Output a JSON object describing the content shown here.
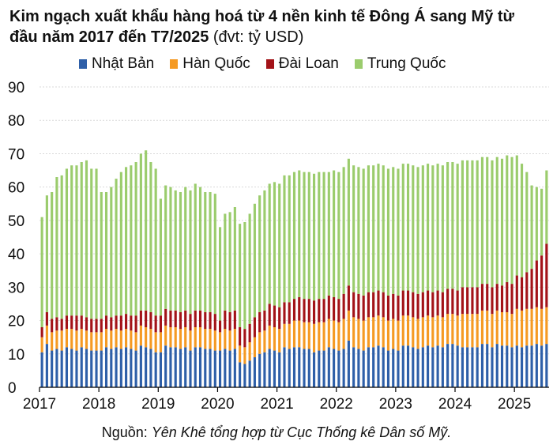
{
  "title": {
    "bold": "Kim ngạch xuất khẩu hàng hoá từ 4 nền kinh tế Đông Á sang Mỹ từ đầu năm 2017 đến T7/2025",
    "unit": " (đvt: tỷ USD)"
  },
  "source": {
    "prefix": "Nguồn: ",
    "text": "Yên Khê tổng hợp từ Cục Thống kê Dân số Mỹ."
  },
  "colors": {
    "japan": "#2e5fa8",
    "korea": "#f59a23",
    "taiwan": "#a31318",
    "china": "#9bcc6d",
    "grid": "#d9d9d9",
    "axis": "#000000"
  },
  "chart_data": {
    "type": "bar",
    "stacked": true,
    "ylim": [
      0,
      90
    ],
    "yticks": [
      0,
      10,
      20,
      30,
      40,
      50,
      60,
      70,
      80,
      90
    ],
    "xtick_labels": [
      "2017",
      "2018",
      "2019",
      "2020",
      "2021",
      "2022",
      "2023",
      "2024",
      "2025"
    ],
    "grid": true,
    "legend_position": "top",
    "period": "monthly, 2017-01 to 2025-07",
    "series": [
      {
        "name": "Nhật Bản",
        "color_key": "japan",
        "values": [
          10.5,
          13,
          11,
          11.5,
          11,
          12,
          11.5,
          11,
          12,
          11.5,
          11,
          11,
          11,
          12,
          11.5,
          12,
          11.5,
          12,
          11.5,
          11,
          12.5,
          12,
          11.5,
          10.5,
          10.5,
          12.5,
          12,
          12,
          11.5,
          12,
          11,
          12,
          12,
          11.5,
          11.5,
          11,
          11,
          11.5,
          11,
          11.5,
          7.5,
          7,
          8,
          9,
          10,
          10.5,
          11.5,
          11,
          10.5,
          12,
          11.5,
          12,
          12,
          11.5,
          11.5,
          10.5,
          11,
          11,
          12,
          11.5,
          11,
          11.5,
          14,
          12,
          11.5,
          11,
          12,
          12,
          12.5,
          12,
          11,
          11.5,
          11,
          12.5,
          12.5,
          12,
          11.5,
          12,
          12.5,
          12,
          12.5,
          12,
          13,
          13,
          12.5,
          12,
          12,
          12,
          12,
          13,
          13,
          12,
          13,
          12.5,
          12.5,
          12,
          12.5,
          12,
          12.5,
          12.5,
          13,
          12.5,
          13
        ]
      },
      {
        "name": "Hàn Quốc",
        "color_key": "korea",
        "values": [
          4.5,
          5.5,
          5.5,
          5.5,
          6,
          5.5,
          6,
          6,
          5.5,
          5.5,
          5.5,
          5.5,
          5.5,
          5.5,
          5.5,
          5.5,
          5.5,
          5.5,
          5.5,
          5.5,
          6,
          6,
          6,
          6,
          6,
          6,
          6,
          6,
          6,
          6,
          6,
          6,
          6,
          6,
          6,
          6,
          5.5,
          6,
          6,
          6,
          5,
          5,
          5.5,
          6,
          6.5,
          6.5,
          7,
          7,
          7,
          7,
          7.5,
          8,
          8,
          8,
          8,
          8.5,
          8.5,
          8.5,
          8.5,
          8.5,
          8.5,
          9,
          9,
          9,
          9,
          9,
          9,
          9,
          9,
          9,
          9,
          9,
          9,
          9,
          9,
          9,
          9,
          9,
          9,
          9,
          9,
          9,
          9,
          9,
          9,
          10,
          10,
          10,
          10,
          10,
          10,
          10,
          10,
          10,
          10,
          10,
          11,
          11,
          11,
          11,
          11,
          11,
          11
        ]
      },
      {
        "name": "Đài Loan",
        "color_key": "taiwan",
        "values": [
          3,
          4,
          4,
          4,
          3.5,
          4,
          4,
          4.5,
          4,
          4,
          4,
          4,
          4,
          4,
          4,
          4,
          4.5,
          4.5,
          4.5,
          5,
          4.5,
          5,
          5,
          5,
          5,
          5,
          5,
          5,
          5,
          5,
          5,
          5,
          5,
          5,
          5,
          5,
          3.5,
          5.5,
          5.5,
          5.5,
          5.5,
          5.5,
          5.5,
          6,
          6,
          6,
          6.5,
          6.5,
          6.5,
          6.5,
          6.5,
          6.5,
          7,
          7,
          7,
          7,
          7,
          7,
          7,
          7,
          7,
          7.5,
          7.5,
          7.5,
          7.5,
          7.5,
          7.5,
          7.5,
          7.5,
          7.5,
          7.5,
          7.5,
          7.5,
          7.5,
          7.5,
          7.5,
          7.5,
          7.5,
          7.5,
          7.5,
          7.5,
          7.5,
          7.5,
          7.5,
          7.5,
          8,
          8,
          8,
          8,
          8,
          8,
          8,
          8,
          8,
          9,
          9,
          10,
          10,
          11,
          12,
          14,
          16,
          19
        ]
      },
      {
        "name": "Trung Quốc",
        "color_key": "china",
        "values": [
          33,
          35,
          38,
          42,
          43,
          44,
          45,
          45,
          46,
          47,
          45,
          45,
          38,
          37,
          39,
          41,
          43,
          44,
          45,
          46,
          47,
          48,
          45,
          44,
          35,
          37,
          37,
          36,
          36,
          37,
          37,
          38,
          37,
          36,
          36,
          36,
          28,
          29,
          30,
          31,
          31,
          32,
          33,
          34,
          35,
          36,
          36,
          37,
          37,
          38,
          38,
          38,
          38,
          38,
          38,
          38,
          38,
          38,
          37,
          38,
          38,
          38,
          38,
          38,
          38,
          38,
          38,
          38,
          38,
          38,
          38,
          38,
          38,
          38,
          38,
          38,
          38,
          38,
          38,
          38,
          38,
          38,
          38,
          38,
          38,
          38,
          38,
          38,
          38,
          38,
          38,
          38,
          38,
          38,
          38,
          38,
          36,
          34,
          30,
          25,
          22,
          20,
          22
        ]
      }
    ]
  }
}
